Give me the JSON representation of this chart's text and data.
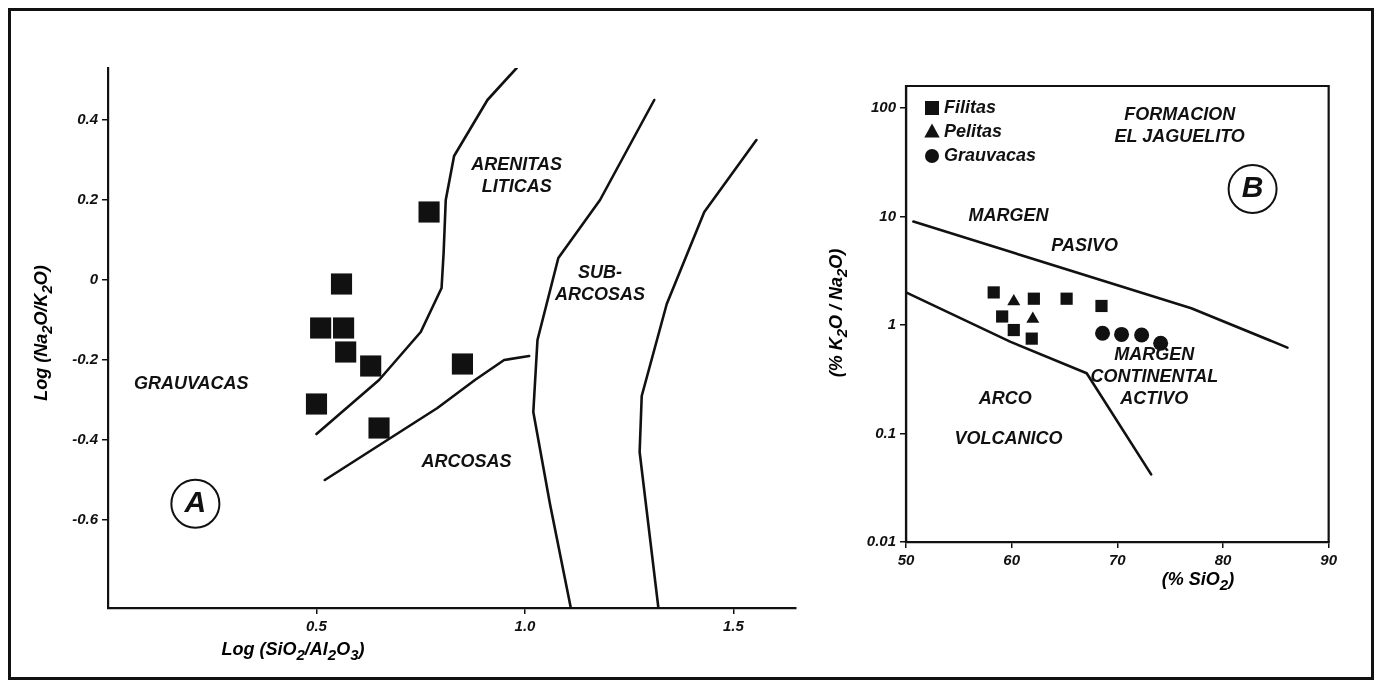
{
  "chart_data": [
    {
      "type": "scatter",
      "xlabel": "Log (SiO$_{2}$/Al$_{2}$O$_{3}$)",
      "ylabel": "Log (Na$_{2}$O/K$_{2}$O)",
      "xlim": [
        0,
        1.65
      ],
      "ylim": [
        -0.82,
        0.53
      ],
      "xticks": [
        0.5,
        {
          "value": 1,
          "label": "1.0"
        },
        {
          "value": 1.5,
          "label": "1.5"
        }
      ],
      "yticks": [
        -0.6,
        -0.4,
        -0.2,
        0,
        0.2,
        0.4
      ],
      "series": [
        {
          "type": "scatter",
          "marker": "square",
          "color": "#111111",
          "x": [
            0.77,
            0.56,
            0.51,
            0.565,
            0.57,
            0.63,
            0.5,
            0.65,
            0.85
          ],
          "values": [
            0.17,
            -0.01,
            -0.12,
            -0.12,
            -0.18,
            -0.215,
            -0.31,
            -0.37,
            -0.21
          ]
        },
        {
          "type": "line",
          "color": "#111111",
          "x": [
            0.5,
            0.65,
            0.75,
            0.8,
            0.805,
            0.81,
            0.83,
            0.91,
            0.98
          ],
          "values": [
            -0.385,
            -0.25,
            -0.13,
            -0.02,
            0.07,
            0.2,
            0.31,
            0.45,
            0.53
          ]
        },
        {
          "type": "line",
          "color": "#111111",
          "x": [
            0.52,
            0.67,
            0.79,
            0.88,
            0.95,
            1.01
          ],
          "values": [
            -0.5,
            -0.4,
            -0.32,
            -0.25,
            -0.2,
            -0.19
          ]
        },
        {
          "type": "line",
          "color": "#111111",
          "x": [
            1.31,
            1.18,
            1.08,
            1.03,
            1.02,
            1.06,
            1.11
          ],
          "values": [
            0.45,
            0.2,
            0.055,
            -0.15,
            -0.33,
            -0.56,
            -0.82
          ]
        },
        {
          "type": "line",
          "color": "#111111",
          "x": [
            1.555,
            1.43,
            1.34,
            1.28,
            1.275,
            1.32
          ],
          "values": [
            0.35,
            0.17,
            -0.06,
            -0.29,
            -0.43,
            -0.82
          ]
        }
      ],
      "annotations": [
        "GRAUVACAS",
        "ARENITAS\nLITICAS",
        "SUB-\nARCOSAS",
        "ARCOSAS",
        "A"
      ]
    },
    {
      "type": "scatter",
      "log": "y",
      "legend": "top left",
      "xlabel": "(% SiO$_{2}$)",
      "ylabel": "(% K$_{2}$O / Na$_{2}$O)",
      "xlim": [
        50,
        90
      ],
      "ylim": [
        0.01,
        160
      ],
      "xticks": [
        50,
        60,
        70,
        80,
        90
      ],
      "yticks": [
        0.01,
        0.1,
        1,
        10,
        100
      ],
      "series": [
        {
          "type": "scatter",
          "name": "Filitas",
          "marker": "square",
          "color": "#111111",
          "x": [
            58.3,
            62.1,
            65.2,
            68.5,
            59.1,
            60.2,
            61.9
          ],
          "values": [
            2.0,
            1.75,
            1.75,
            1.5,
            1.2,
            0.9,
            0.75
          ]
        },
        {
          "type": "scatter",
          "name": "Pelitas",
          "marker": "triangle",
          "color": "#111111",
          "x": [
            60.2,
            62
          ],
          "values": [
            1.65,
            1.14
          ]
        },
        {
          "type": "scatter",
          "name": "Grauvacas",
          "marker": "circle",
          "color": "#111111",
          "x": [
            68.6,
            70.4,
            72.3,
            74.1
          ],
          "values": [
            0.84,
            0.82,
            0.81,
            0.68
          ]
        },
        {
          "type": "line",
          "color": "#111111",
          "x": [
            50.7,
            77,
            86.1
          ],
          "values": [
            9.0,
            1.43,
            0.62
          ]
        },
        {
          "type": "line",
          "color": "#111111",
          "x": [
            50,
            59.9,
            67.1,
            73.2
          ],
          "values": [
            2.0,
            0.7,
            0.36,
            0.042
          ]
        }
      ],
      "annotations": [
        "FORMACION\nEL JAGUELITO",
        "MARGEN",
        "PASIVO",
        "MARGEN\nCONTINENTAL\nACTIVO",
        "ARCO",
        "VOLCANICO",
        "B"
      ]
    }
  ]
}
